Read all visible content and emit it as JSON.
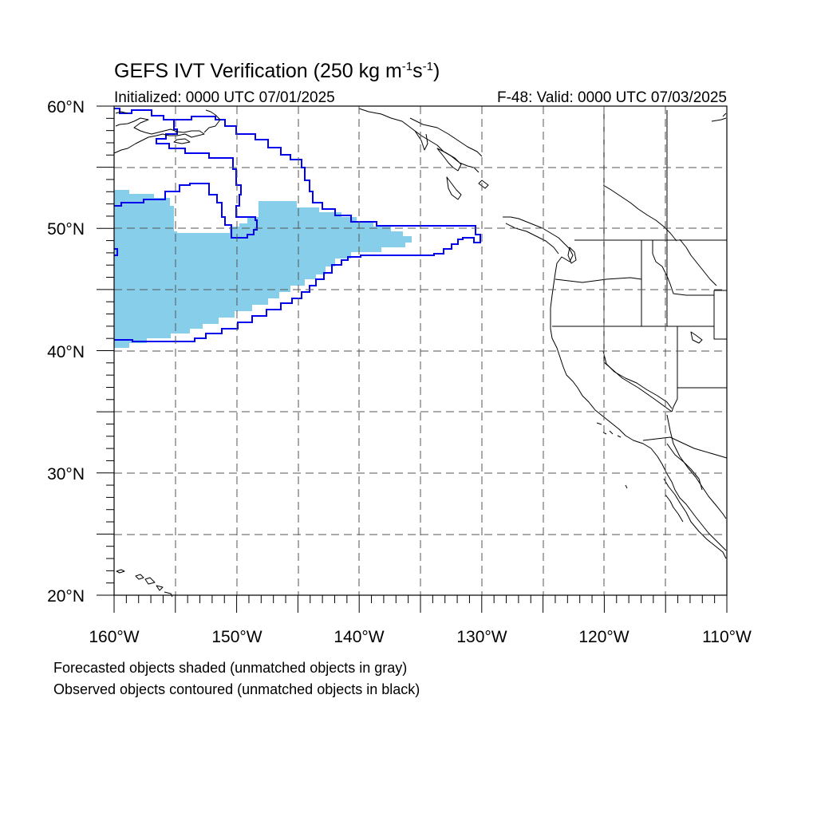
{
  "title": {
    "main": "GEFS IVT Verification (250 kg m",
    "sup1": "-1",
    "mid": "s",
    "sup2": "-1",
    "end": ")"
  },
  "initialized": "Initialized: 0000 UTC 07/01/2025",
  "valid": "F-48: Valid: 0000 UTC 07/03/2025",
  "lat_labels": [
    "20°N",
    "30°N",
    "40°N",
    "50°N",
    "60°N"
  ],
  "lon_labels": [
    "160°W",
    "150°W",
    "140°W",
    "130°W",
    "120°W",
    "110°W"
  ],
  "legend": {
    "line1": "Forecasted objects shaded (unmatched objects in gray)",
    "line2": "Observed objects contoured (unmatched objects in black)"
  },
  "colors": {
    "forecast_fill": "#87ceea",
    "observed_contour": "#0000ee",
    "coastline": "#000000"
  },
  "map": {
    "lat_range": [
      20,
      60
    ],
    "lon_range": [
      -160,
      -110
    ]
  }
}
